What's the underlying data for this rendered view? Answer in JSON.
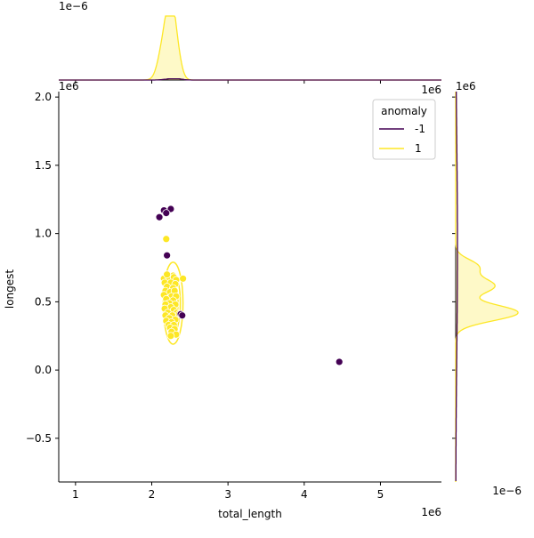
{
  "chart_data": {
    "type": "scatter",
    "subtype": "joint-plot (scatter + KDE contours, marginal KDE)",
    "xlabel": "total_length",
    "ylabel": "longest",
    "x_offset_text": "1e6",
    "y_offset_text": "1e6",
    "xlim": [
      780000,
      5800000
    ],
    "ylim": [
      -820000,
      2040000
    ],
    "x_ticks": [
      1000000,
      2000000,
      3000000,
      4000000,
      5000000
    ],
    "x_tick_labels": [
      "1",
      "2",
      "3",
      "4",
      "5"
    ],
    "y_ticks": [
      -500000,
      0,
      500000,
      1000000,
      1500000,
      2000000
    ],
    "y_tick_labels": [
      "−0.5",
      "0.0",
      "0.5",
      "1.0",
      "1.5",
      "2.0"
    ],
    "legend": {
      "title": "anomaly",
      "placement": "top-right",
      "entries": [
        {
          "label": "-1",
          "color": "#440154"
        },
        {
          "label": "1",
          "color": "#fde725"
        }
      ]
    },
    "series": [
      {
        "name": "-1",
        "color": "#440154",
        "points": [
          [
            2160000,
            1170000
          ],
          [
            2250000,
            1180000
          ],
          [
            2190000,
            1150000
          ],
          [
            2100000,
            1120000
          ],
          [
            2200000,
            840000
          ],
          [
            2380000,
            410000
          ],
          [
            2400000,
            400000
          ],
          [
            4460000,
            60000
          ]
        ]
      },
      {
        "name": "1",
        "color": "#fde725",
        "points": [
          [
            2190000,
            960000
          ],
          [
            2160000,
            670000
          ],
          [
            2230000,
            670000
          ],
          [
            2290000,
            680000
          ],
          [
            2320000,
            660000
          ],
          [
            2410000,
            670000
          ],
          [
            2170000,
            640000
          ],
          [
            2250000,
            640000
          ],
          [
            2310000,
            630000
          ],
          [
            2200000,
            610000
          ],
          [
            2280000,
            600000
          ],
          [
            2180000,
            580000
          ],
          [
            2240000,
            570000
          ],
          [
            2300000,
            580000
          ],
          [
            2160000,
            550000
          ],
          [
            2260000,
            540000
          ],
          [
            2320000,
            540000
          ],
          [
            2190000,
            520000
          ],
          [
            2280000,
            510000
          ],
          [
            2230000,
            490000
          ],
          [
            2180000,
            480000
          ],
          [
            2310000,
            480000
          ],
          [
            2250000,
            460000
          ],
          [
            2170000,
            450000
          ],
          [
            2290000,
            440000
          ],
          [
            2210000,
            420000
          ],
          [
            2330000,
            420000
          ],
          [
            2180000,
            400000
          ],
          [
            2270000,
            400000
          ],
          [
            2230000,
            380000
          ],
          [
            2310000,
            370000
          ],
          [
            2190000,
            360000
          ],
          [
            2260000,
            350000
          ],
          [
            2220000,
            330000
          ],
          [
            2290000,
            330000
          ],
          [
            2240000,
            310000
          ],
          [
            2300000,
            300000
          ],
          [
            2260000,
            280000
          ],
          [
            2320000,
            260000
          ],
          [
            2250000,
            250000
          ],
          [
            2360000,
            410000
          ],
          [
            2200000,
            700000
          ]
        ]
      }
    ],
    "kde_contours_series_1": {
      "center": [
        2280000,
        490000
      ],
      "levels": [
        {
          "sx": 130000,
          "sy": 300000
        },
        {
          "sx": 95000,
          "sy": 220000
        },
        {
          "sx": 65000,
          "sy": 150000
        }
      ]
    },
    "top_marginal": {
      "variable": "total_length",
      "offset_text": "1e−6",
      "series": [
        {
          "name": "1",
          "color": "#fde725",
          "peak_x": 2250000,
          "rel_height": 1.0
        },
        {
          "name": "-1",
          "color": "#440154",
          "peak_x": 2300000,
          "rel_height": 0.02
        }
      ]
    },
    "right_marginal": {
      "variable": "longest",
      "offset_text": "1e−6",
      "series": [
        {
          "name": "1",
          "color": "#fde725",
          "peak_y": 420000,
          "rel_height": 1.0
        },
        {
          "name": "-1",
          "color": "#440154",
          "peak_y": 900000,
          "rel_height": 0.02
        }
      ]
    }
  }
}
